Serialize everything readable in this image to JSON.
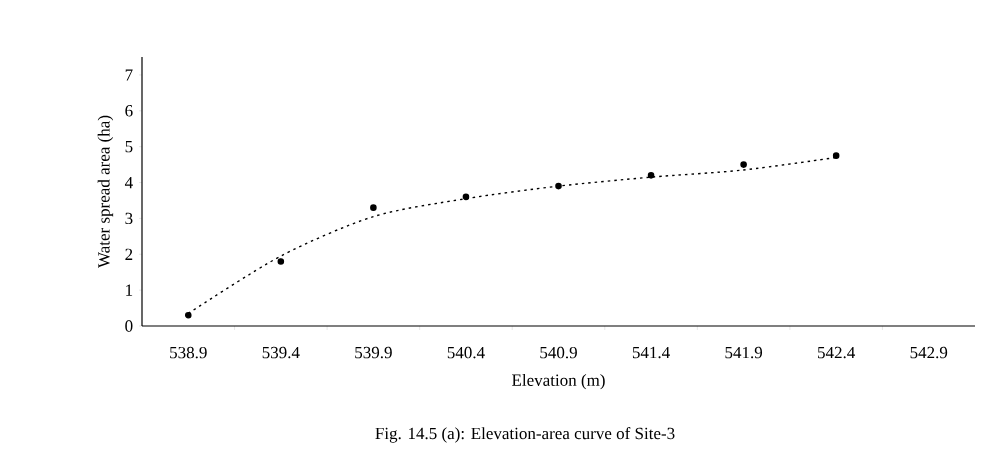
{
  "chart_data": {
    "type": "scatter",
    "xlabel": "Elevation (m)",
    "ylabel": "Water spread area (ha)",
    "categories": [
      "538.9",
      "539.4",
      "539.9",
      "540.4",
      "540.9",
      "541.4",
      "541.9",
      "542.4",
      "542.9"
    ],
    "ylim": [
      0,
      7.5
    ],
    "yticks": [
      0,
      1,
      2,
      3,
      4,
      5,
      6,
      7
    ],
    "series": [
      {
        "color": "#000000",
        "marker": "circle",
        "values": [
          0.3,
          1.8,
          3.3,
          3.6,
          3.9,
          4.2,
          4.5,
          4.75,
          null
        ]
      },
      {
        "type": "line",
        "color": "#000000",
        "line_style": "dotted",
        "marker": "none",
        "values": [
          0.35,
          1.95,
          3.05,
          3.55,
          3.9,
          4.15,
          4.35,
          4.7,
          null
        ]
      }
    ],
    "annotations": [
      "Fig. 14.5 (a): Elevation-area curve of Site-3"
    ]
  }
}
